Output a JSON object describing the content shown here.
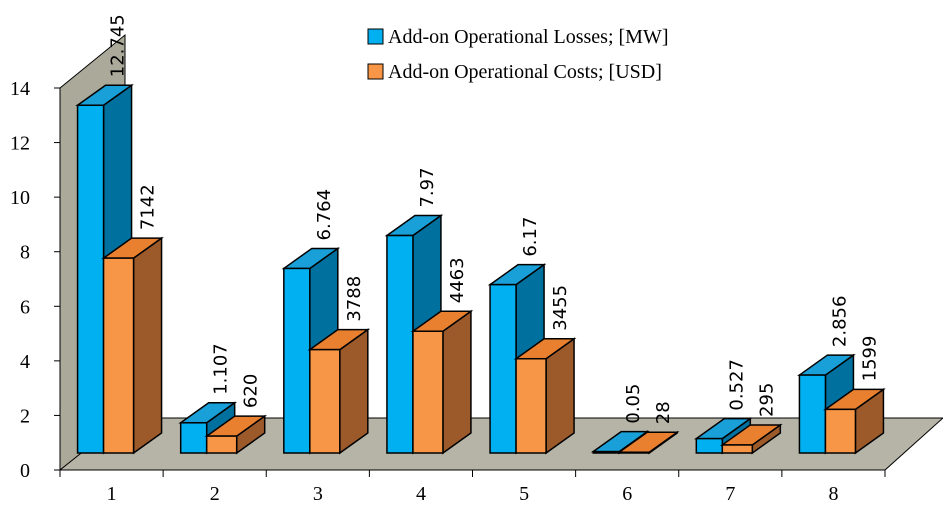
{
  "chart_data": {
    "type": "bar3d",
    "categories": [
      "1",
      "2",
      "3",
      "4",
      "5",
      "6",
      "7",
      "8"
    ],
    "series": [
      {
        "name": "Add-on Operational Losses; [MW]",
        "color": "#00b0f0",
        "values": [
          12.745,
          1.107,
          6.764,
          7.97,
          6.17,
          0.05,
          0.527,
          2.856
        ]
      },
      {
        "name": "Add-on Operational Costs; [USD]",
        "color": "#f79646",
        "axis": "y2",
        "values": [
          7142,
          620,
          3788,
          4463,
          3455,
          28,
          295,
          1599
        ]
      }
    ],
    "ylim": [
      0,
      14
    ],
    "yticks": [
      0,
      2,
      4,
      6,
      8,
      10,
      12,
      14
    ],
    "y2lim": [
      0,
      14000
    ]
  }
}
